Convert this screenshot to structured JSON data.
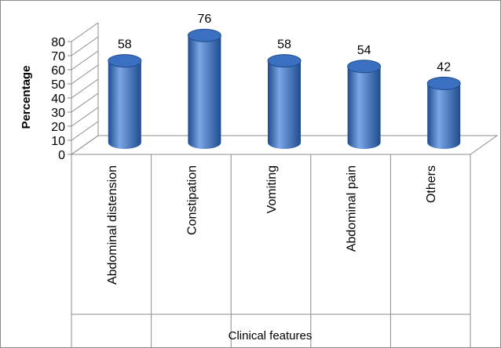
{
  "chart_data": {
    "type": "bar",
    "style": "3d-cylinder",
    "categories": [
      "Abdominal distension",
      "Constipation",
      "Vomiting",
      "Abdominal pain",
      "Others"
    ],
    "values": [
      58,
      76,
      58,
      54,
      42
    ],
    "title": "",
    "xlabel": "Clinical features",
    "ylabel": "Percentage",
    "ylim": [
      0,
      80
    ],
    "yticks": [
      "0",
      "10",
      "20",
      "30",
      "40",
      "50",
      "60",
      "70",
      "80"
    ],
    "grid": false,
    "legend": "none",
    "bar_color": "#3b6fc0",
    "bar_dark": "#1f4c8f",
    "bar_light": "#7aa6e6"
  }
}
